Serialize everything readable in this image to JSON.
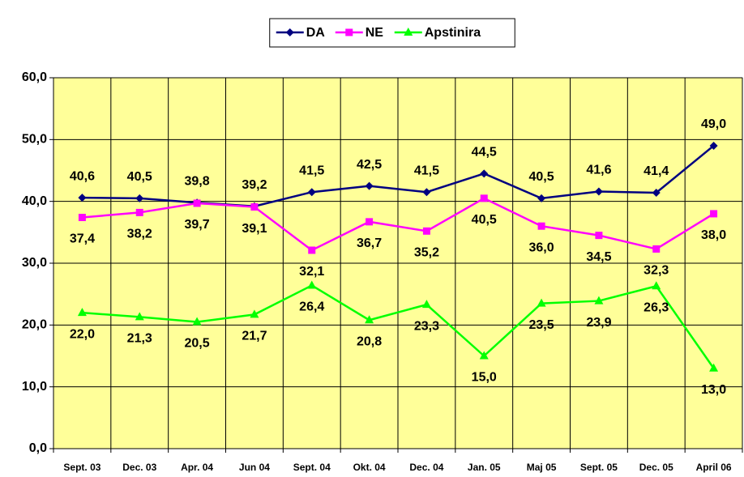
{
  "chart_data": {
    "type": "line",
    "categories": [
      "Sept. 03",
      "Dec. 03",
      "Apr. 04",
      "Jun 04",
      "Sept. 04",
      "Okt. 04",
      "Dec. 04",
      "Jan. 05",
      "Maj 05",
      "Sept. 05",
      "Dec. 05",
      "April 06"
    ],
    "series": [
      {
        "name": "DA",
        "color": "#000080",
        "marker": "diamond",
        "values": [
          40.6,
          40.5,
          39.8,
          39.2,
          41.5,
          42.5,
          41.5,
          44.5,
          40.5,
          41.6,
          41.4,
          49.0
        ],
        "value_labels": [
          "40,6",
          "40,5",
          "39,8",
          "39,2",
          "41,5",
          "42,5",
          "41,5",
          "44,5",
          "40,5",
          "41,6",
          "41,4",
          "49,0"
        ]
      },
      {
        "name": "NE",
        "color": "#ff00ff",
        "marker": "square",
        "values": [
          37.4,
          38.2,
          39.7,
          39.1,
          32.1,
          36.7,
          35.2,
          40.5,
          36.0,
          34.5,
          32.3,
          38.0
        ],
        "value_labels": [
          "37,4",
          "38,2",
          "39,7",
          "39,1",
          "32,1",
          "36,7",
          "35,2",
          "40,5",
          "36,0",
          "34,5",
          "32,3",
          "38,0"
        ]
      },
      {
        "name": "Apstinira",
        "color": "#00ff00",
        "marker": "triangle",
        "values": [
          22.0,
          21.3,
          20.5,
          21.7,
          26.4,
          20.8,
          23.3,
          15.0,
          23.5,
          23.9,
          26.3,
          13.0
        ],
        "value_labels": [
          "22,0",
          "21,3",
          "20,5",
          "21,7",
          "26,4",
          "20,8",
          "23,3",
          "15,0",
          "23,5",
          "23,9",
          "26,3",
          "13,0"
        ]
      }
    ],
    "ylim": [
      0,
      60
    ],
    "yticks": [
      {
        "value": 0,
        "label": "0,0"
      },
      {
        "value": 10,
        "label": "10,0"
      },
      {
        "value": 20,
        "label": "20,0"
      },
      {
        "value": 30,
        "label": "30,0"
      },
      {
        "value": 40,
        "label": "40,0"
      },
      {
        "value": 50,
        "label": "50,0"
      },
      {
        "value": 60,
        "label": "60,0"
      }
    ],
    "grid": true,
    "legend": "top",
    "plot_background": "#ffff99"
  }
}
